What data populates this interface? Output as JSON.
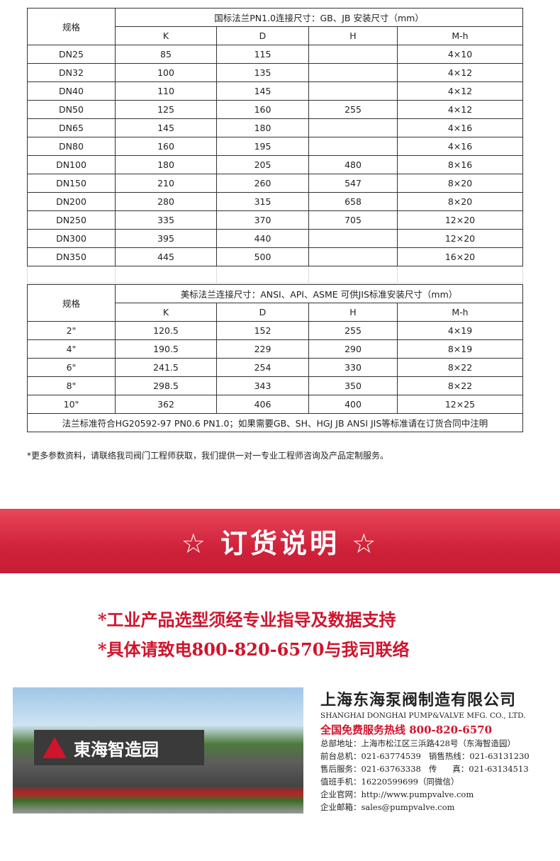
{
  "table1": {
    "spec_label": "规格",
    "title": "国标法兰PN1.0连接尺寸：GB、JB 安装尺寸（mm）",
    "columns": [
      "K",
      "D",
      "H",
      "M-h"
    ],
    "rows": [
      [
        "DN25",
        "85",
        "115",
        "",
        "4×10"
      ],
      [
        "DN32",
        "100",
        "135",
        "",
        "4×12"
      ],
      [
        "DN40",
        "110",
        "145",
        "",
        "4×12"
      ],
      [
        "DN50",
        "125",
        "160",
        "255",
        "4×12"
      ],
      [
        "DN65",
        "145",
        "180",
        "",
        "4×16"
      ],
      [
        "DN80",
        "160",
        "195",
        "",
        "4×16"
      ],
      [
        "DN100",
        "180",
        "205",
        "480",
        "8×16"
      ],
      [
        "DN150",
        "210",
        "260",
        "547",
        "8×20"
      ],
      [
        "DN200",
        "280",
        "315",
        "658",
        "8×20"
      ],
      [
        "DN250",
        "335",
        "370",
        "705",
        "12×20"
      ],
      [
        "DN300",
        "395",
        "440",
        "",
        "12×20"
      ],
      [
        "DN350",
        "445",
        "500",
        "",
        "16×20"
      ]
    ]
  },
  "table2": {
    "spec_label": "规格",
    "title": "美标法兰连接尺寸：ANSI、API、ASME 可供JIS标准安装尺寸（mm）",
    "columns": [
      "K",
      "D",
      "H",
      "M-h"
    ],
    "rows": [
      [
        "2\"",
        "120.5",
        "152",
        "255",
        "4×19"
      ],
      [
        "4\"",
        "190.5",
        "229",
        "290",
        "8×19"
      ],
      [
        "6\"",
        "241.5",
        "254",
        "330",
        "8×22"
      ],
      [
        "8\"",
        "298.5",
        "343",
        "350",
        "8×22"
      ],
      [
        "10\"",
        "362",
        "406",
        "400",
        "12×25"
      ]
    ],
    "footer": "法兰标准符合HG20592-97 PN0.6 PN1.0；如果需要GB、SH、HGJ JB ANSI JIS等标准请在订货合同中注明"
  },
  "note": "*更多参数资料，请联络我司阀门工程师获取，我们提供一对一专业工程师咨询及产品定制服务。",
  "banner": "☆ 订货说明 ☆",
  "order_lines": [
    "*工业产品选型须经专业指导及数据支持",
    "*具体请致电800-820-6570与我司联络"
  ],
  "photo": {
    "sign_text": "東海智造园"
  },
  "company": {
    "name": "上海东海泵阀制造有限公司",
    "english": "SHANGHAI DONGHAI PUMP&VALVE MFG. CO., LTD.",
    "hotline": "全国免费服务热线  800-820-6570",
    "lines": [
      "总部地址：上海市松江区三浜路428号（东海智造园）",
      "前台总机：021-63774539   销售热线：021-63131230",
      "售后服务：021-63763338   传      真：021-63134513",
      "值班手机：16220599699（同微信）",
      "企业官网：http://www.pumpvalve.com",
      "企业邮箱：sales@pumpvalve.com"
    ]
  },
  "colors": {
    "accent": "#d0142c"
  }
}
